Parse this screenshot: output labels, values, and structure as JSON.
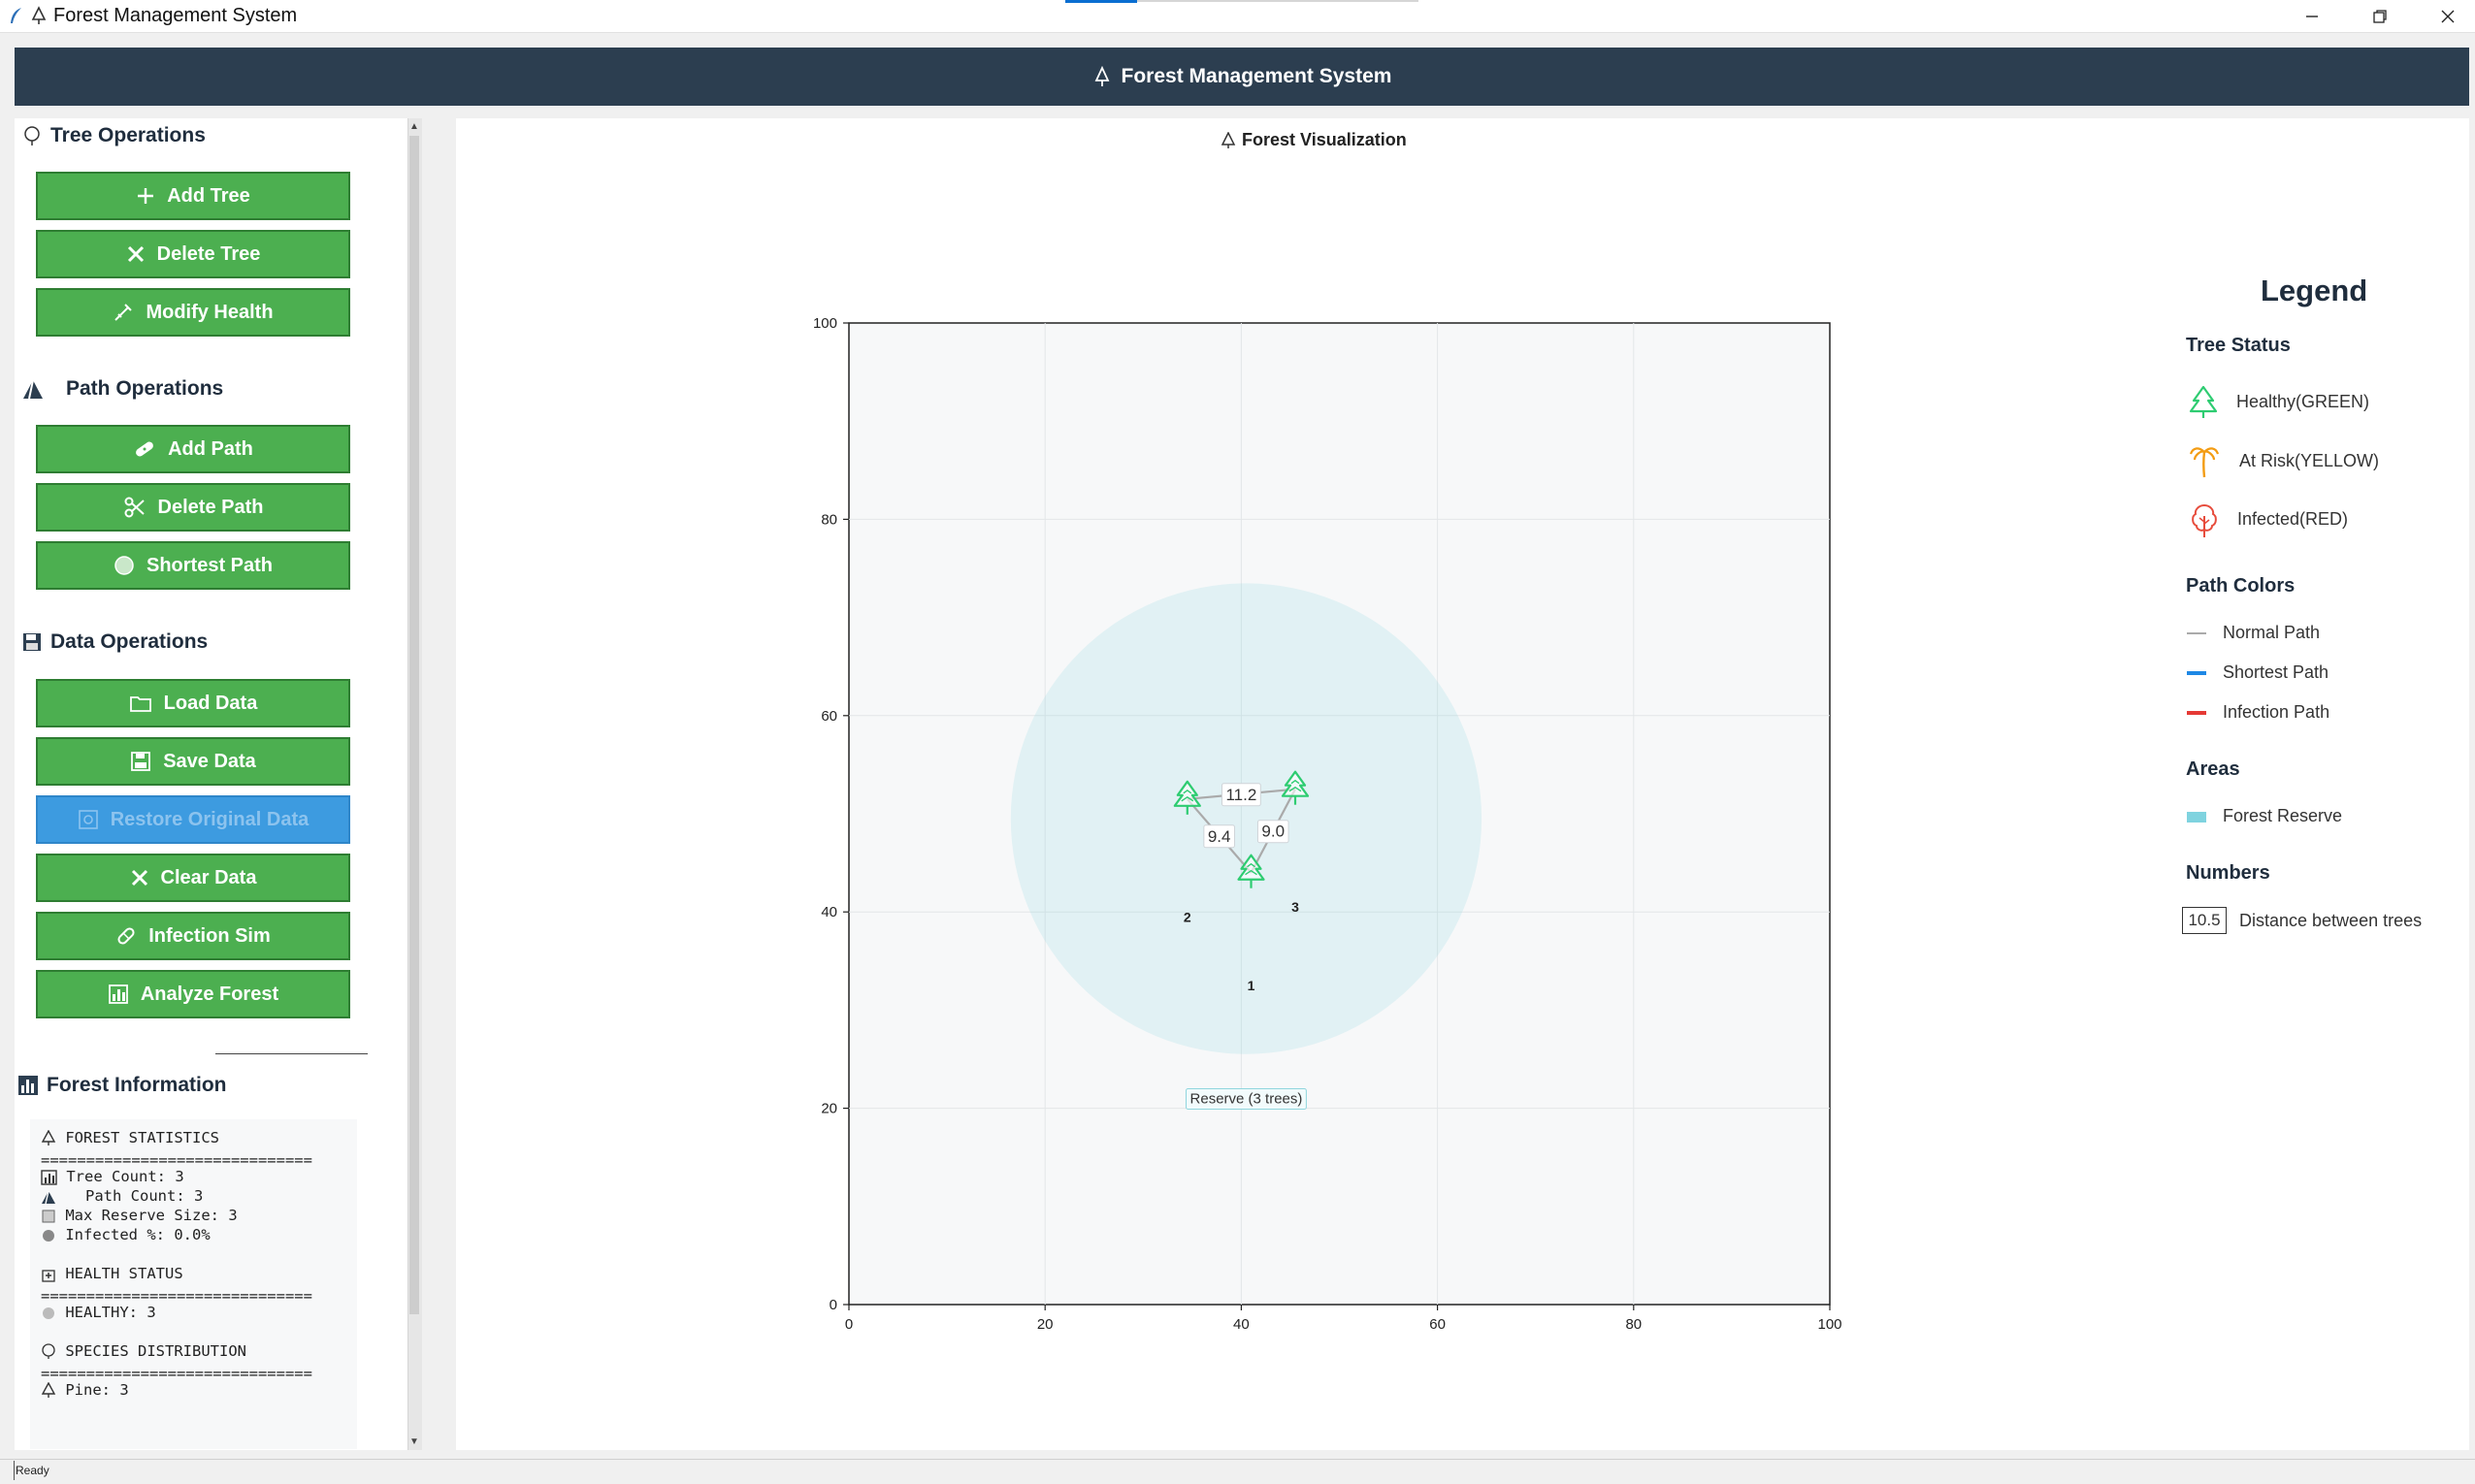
{
  "window": {
    "title": "Forest Management System",
    "controls": [
      "minimize",
      "restore",
      "close"
    ]
  },
  "header": {
    "title": "Forest Management System"
  },
  "tree_ops": {
    "heading": "Tree Operations",
    "add": "Add Tree",
    "delete": "Delete Tree",
    "modify": "Modify Health"
  },
  "path_ops": {
    "heading": "Path Operations",
    "add": "Add Path",
    "delete": "Delete Path",
    "shortest": "Shortest Path"
  },
  "data_ops": {
    "heading": "Data Operations",
    "load": "Load Data",
    "save": "Save Data",
    "restore": "Restore Original Data",
    "clear": "Clear Data",
    "infection": "Infection Sim",
    "analyze": "Analyze Forest"
  },
  "info": {
    "heading": "Forest Information",
    "stats_title": "FOREST STATISTICS",
    "separator": "==============================",
    "tree_count": "Tree Count: 3",
    "path_count": "  Path Count: 3",
    "max_reserve": "Max Reserve Size: 3",
    "infected": "Infected %: 0.0%",
    "health_title": "HEALTH STATUS",
    "healthy": "HEALTHY: 3",
    "species_title": "SPECIES DISTRIBUTION",
    "pine": "Pine: 3"
  },
  "viz": {
    "title": "Forest Visualization"
  },
  "chart_data": {
    "type": "scatter",
    "xlim": [
      0,
      100
    ],
    "ylim": [
      0,
      100
    ],
    "xticks": [
      0,
      20,
      40,
      60,
      80,
      100
    ],
    "yticks": [
      0,
      20,
      40,
      60,
      80,
      100
    ],
    "grid": true,
    "trees": [
      {
        "id": "1",
        "x": 41,
        "y": 44,
        "status": "healthy"
      },
      {
        "id": "2",
        "x": 34.5,
        "y": 51.5,
        "status": "healthy"
      },
      {
        "id": "3",
        "x": 45.5,
        "y": 52.5,
        "status": "healthy"
      }
    ],
    "tree_labels": [
      {
        "text": "1",
        "x": 41,
        "y": 32.5
      },
      {
        "text": "2",
        "x": 34.5,
        "y": 39.5
      },
      {
        "text": "3",
        "x": 45.5,
        "y": 40.5
      }
    ],
    "paths": [
      {
        "from": "2",
        "to": "3",
        "distance": "11.2"
      },
      {
        "from": "2",
        "to": "1",
        "distance": "9.4"
      },
      {
        "from": "3",
        "to": "1",
        "distance": "9.0"
      }
    ],
    "reserve": {
      "cx": 40.5,
      "cy": 49.5,
      "r": 24,
      "label": "Reserve (3 trees)",
      "label_x": 40.5,
      "label_y": 21
    }
  },
  "legend": {
    "title": "Legend",
    "tree_status": "Tree Status",
    "healthy": "Healthy(GREEN)",
    "at_risk": "At Risk(YELLOW)",
    "infected": "Infected(RED)",
    "path_colors": "Path Colors",
    "normal": "Normal Path",
    "shortest": "Shortest Path",
    "infection": "Infection Path",
    "areas": "Areas",
    "reserve": "Forest Reserve",
    "numbers": "Numbers",
    "number_sample": "10.5",
    "distance": "Distance between trees",
    "colors": {
      "healthy": "#2ecc71",
      "at_risk": "#f39c12",
      "infected": "#e74c3c",
      "normal": "#aaaaaa",
      "shortest": "#1e88e5",
      "infection": "#e53935",
      "reserve": "#7fd3df"
    }
  },
  "status": {
    "text": "Ready"
  }
}
